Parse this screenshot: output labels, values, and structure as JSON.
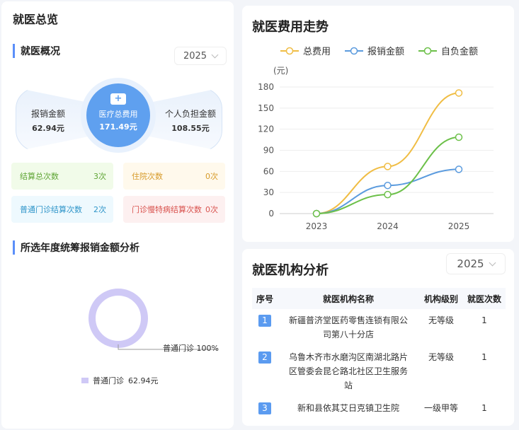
{
  "page_title": "就医总览",
  "overview": {
    "section_title": "就医概况",
    "year": "2025",
    "reimbursed": {
      "label": "报销金额",
      "value": "62.94元"
    },
    "total": {
      "label": "医疗总费用",
      "value": "171.49元"
    },
    "personal": {
      "label": "个人负担金额",
      "value": "108.55元"
    },
    "stats": [
      {
        "label": "结算总次数",
        "value": "3次",
        "color": "#5fa535"
      },
      {
        "label": "住院次数",
        "value": "0次",
        "color": "#d79b2a"
      },
      {
        "label": "普通门诊结算次数",
        "value": "2次",
        "color": "#2f95c9"
      },
      {
        "label": "门诊慢特病结算次数",
        "value": "0次",
        "color": "#d9534f"
      }
    ]
  },
  "pool_analysis": {
    "section_title": "所选年度统筹报销金额分析",
    "slice_label": "普通门诊 100%",
    "legend": {
      "name": "普通门诊",
      "value": "62.94元"
    },
    "color": "#cfc9f6",
    "slices": [
      {
        "name": "普通门诊",
        "value": 62.94,
        "percent": 100
      }
    ]
  },
  "trend": {
    "title": "就医费用走势",
    "chart_data": {
      "type": "line",
      "ylabel": "(元)",
      "categories": [
        "2023",
        "2024",
        "2025"
      ],
      "ylim": [
        0,
        180
      ],
      "yticks": [
        "0",
        "30",
        "60",
        "90",
        "120",
        "150",
        "180"
      ],
      "grid": true,
      "legend_position": "top",
      "series": [
        {
          "name": "总费用",
          "color": "#f0bd44",
          "values": [
            0,
            67,
            171.49
          ]
        },
        {
          "name": "报销金额",
          "color": "#5b9bde",
          "values": [
            0,
            40,
            62.94
          ]
        },
        {
          "name": "自负金额",
          "color": "#6cc049",
          "values": [
            0,
            27,
            108.55
          ]
        }
      ]
    }
  },
  "institutions": {
    "title": "就医机构分析",
    "year": "2025",
    "columns": [
      "序号",
      "就医机构名称",
      "机构级别",
      "就医次数"
    ],
    "rows": [
      {
        "index": "1",
        "name": "新疆普济堂医药零售连锁有限公司第八十分店",
        "level": "无等级",
        "count": "1"
      },
      {
        "index": "2",
        "name": "乌鲁木齐市水磨沟区南湖北路片区管委会昆仑路北社区卫生服务站",
        "level": "无等级",
        "count": "1"
      },
      {
        "index": "3",
        "name": "新和县依其艾日克镇卫生院",
        "level": "一级甲等",
        "count": "1"
      }
    ]
  }
}
